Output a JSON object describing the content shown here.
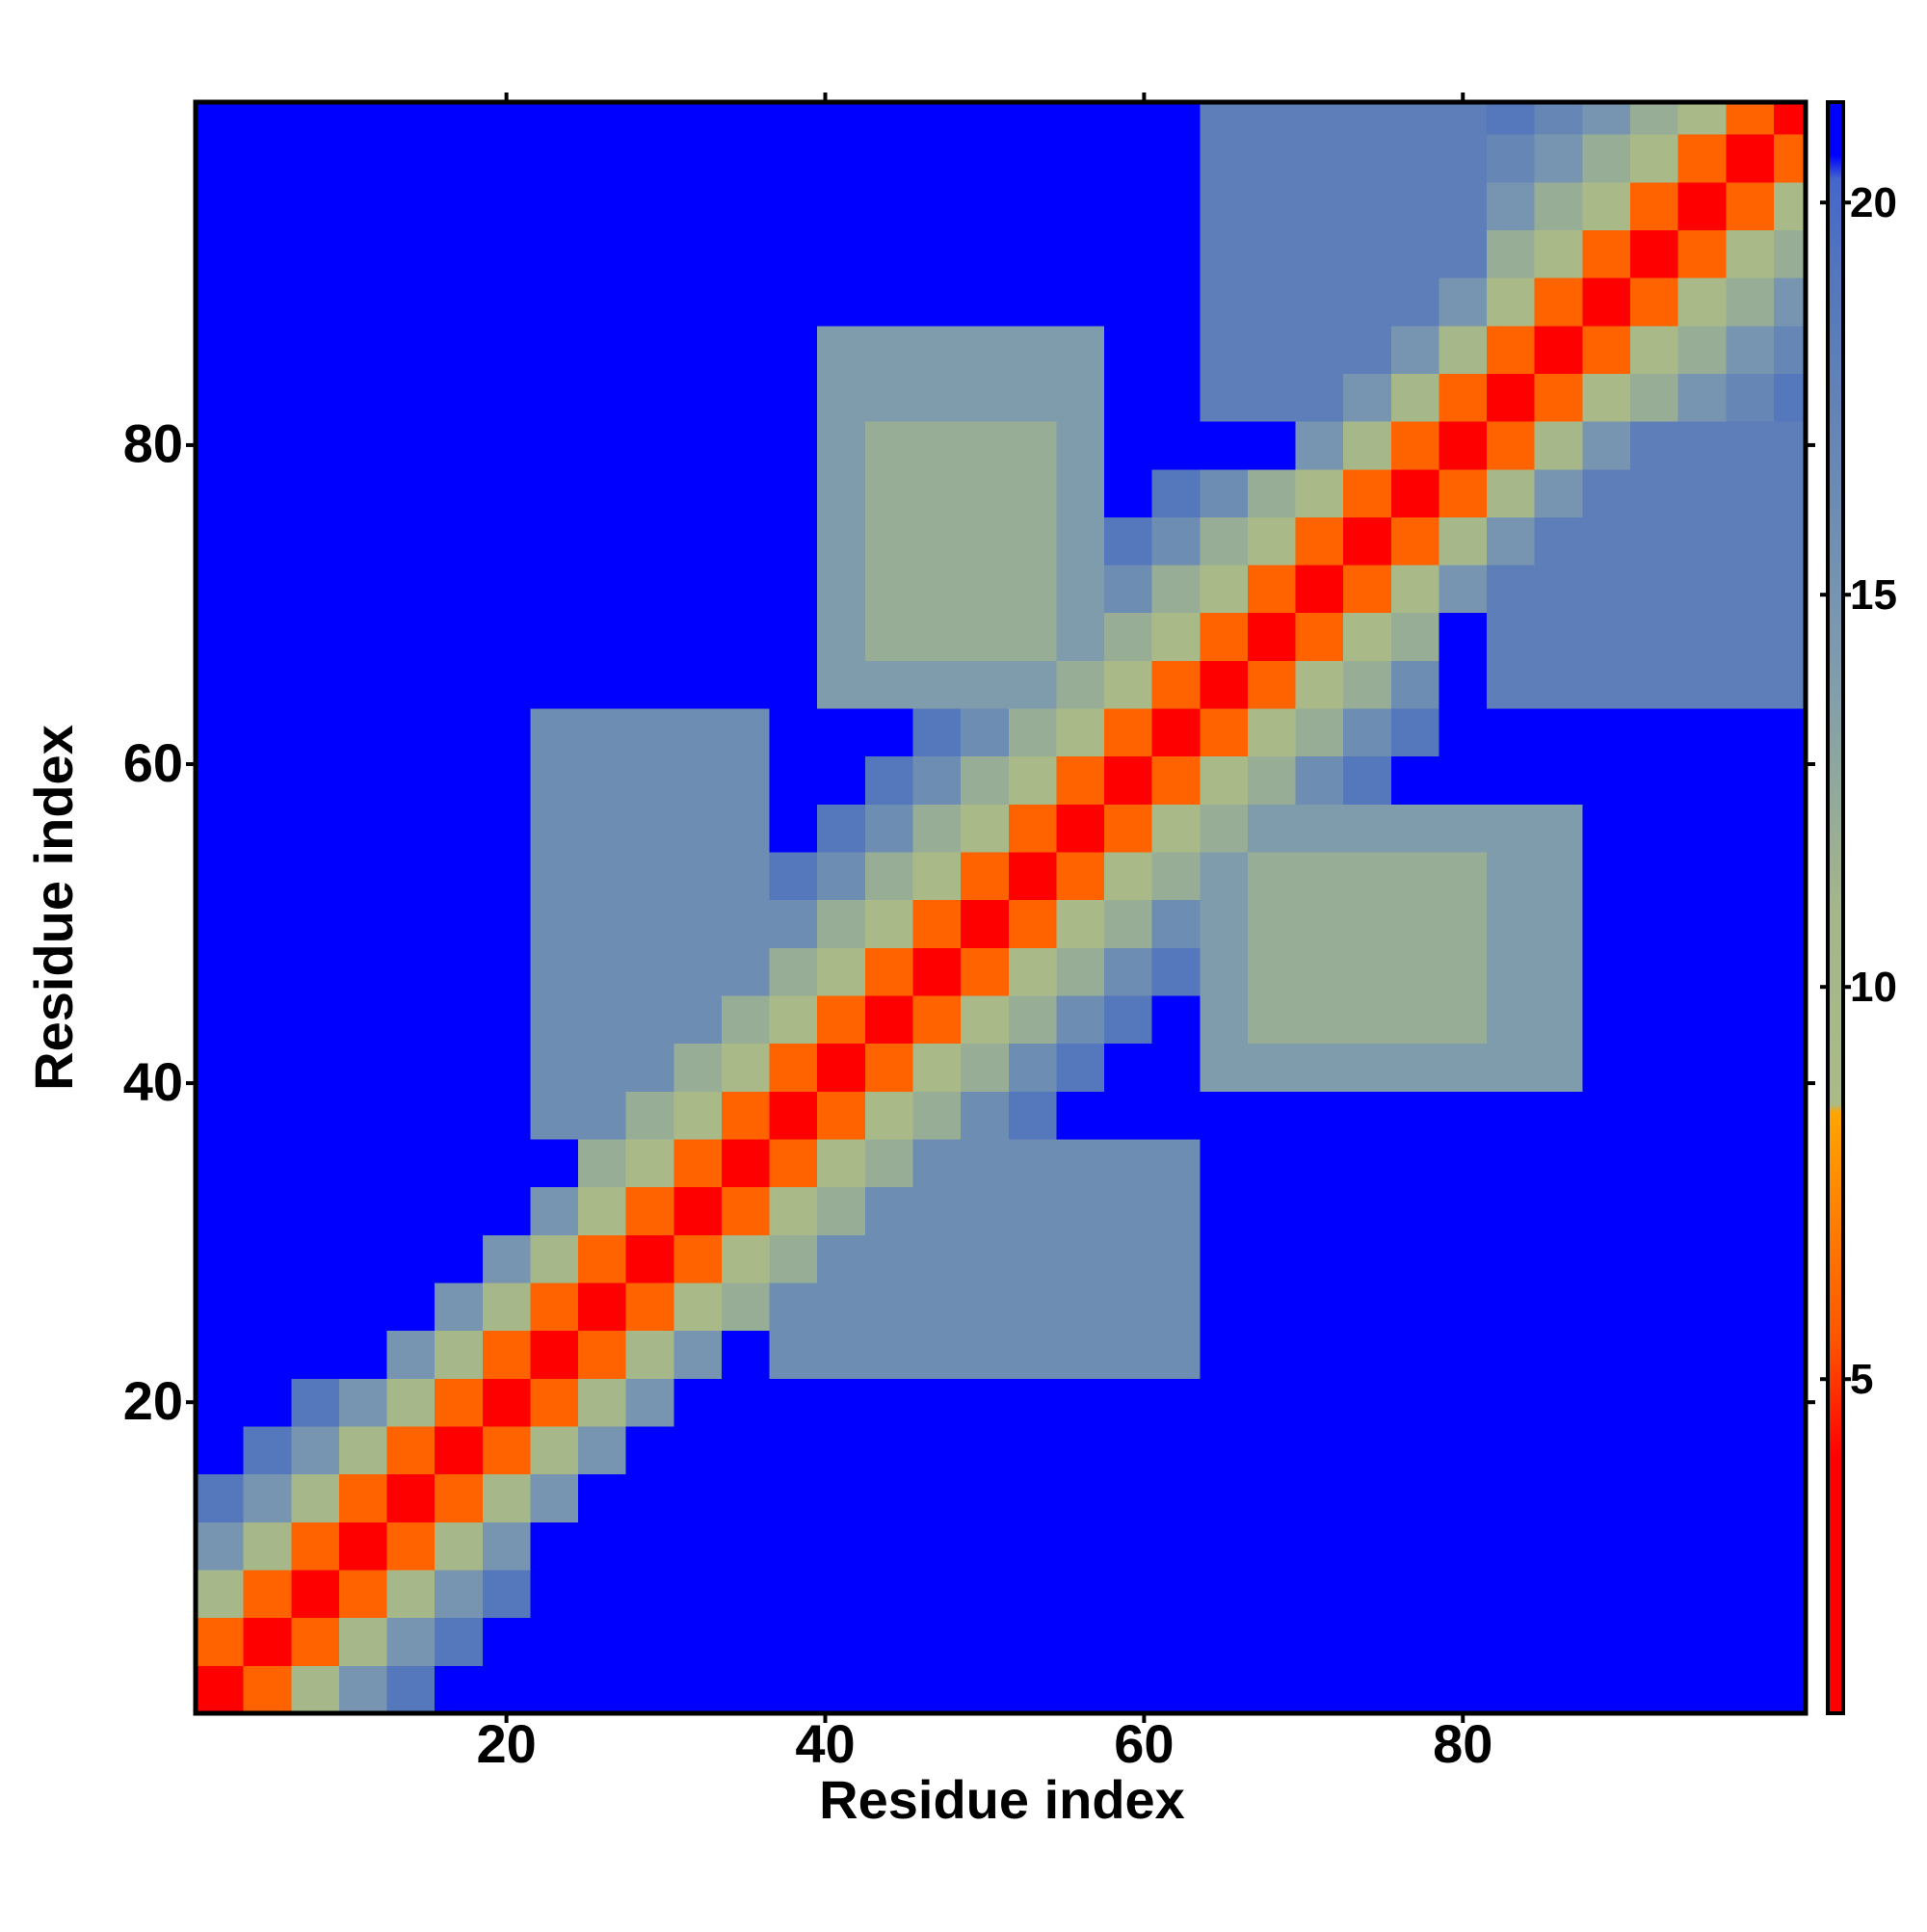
{
  "chart_data": {
    "type": "heatmap",
    "x_label": "Residue index",
    "y_label": "Residue index",
    "xlim": [
      0.5,
      101.5
    ],
    "ylim": [
      0.5,
      101.5
    ],
    "xticks": [
      20,
      40,
      60,
      80
    ],
    "yticks": [
      20,
      40,
      60,
      80
    ],
    "x_bins": [
      0.5,
      3.5,
      6.5,
      9.5,
      12.5,
      15.5,
      18.5,
      21.5,
      24.5,
      27.5,
      30.5,
      33.5,
      36.5,
      39.5,
      42.5,
      45.5,
      48.5,
      51.5,
      54.5,
      57.5,
      60.5,
      63.5,
      66.5,
      69.5,
      72.5,
      75.5,
      78.5,
      81.5,
      84.5,
      87.5,
      90.5,
      93.5,
      96.5,
      99.5,
      101.5
    ],
    "y_bins": [
      0.5,
      3.5,
      6.5,
      9.5,
      12.5,
      15.5,
      18.5,
      21.5,
      24.5,
      27.5,
      30.5,
      33.5,
      36.5,
      39.5,
      42.5,
      45.5,
      48.5,
      51.5,
      54.5,
      57.5,
      60.5,
      63.5,
      66.5,
      69.5,
      72.5,
      75.5,
      78.5,
      81.5,
      84.5,
      87.5,
      90.5,
      93.5,
      96.5,
      99.5,
      101.5
    ],
    "z": [
      [
        2,
        6,
        10,
        15,
        19,
        21,
        21,
        21,
        21,
        21,
        21,
        21,
        21,
        21,
        21,
        21,
        21,
        21,
        21,
        21,
        21,
        21,
        21,
        21,
        21,
        21,
        21,
        21,
        21,
        21,
        21,
        21,
        21,
        21
      ],
      [
        6,
        2,
        6,
        10,
        15,
        19,
        21,
        21,
        21,
        21,
        21,
        21,
        21,
        21,
        21,
        21,
        21,
        21,
        21,
        21,
        21,
        21,
        21,
        21,
        21,
        21,
        21,
        21,
        21,
        21,
        21,
        21,
        21,
        21
      ],
      [
        10,
        6,
        2,
        6,
        10,
        15,
        19,
        21,
        21,
        21,
        21,
        21,
        21,
        21,
        21,
        21,
        21,
        21,
        21,
        21,
        21,
        21,
        21,
        21,
        21,
        21,
        21,
        21,
        21,
        21,
        21,
        21,
        21,
        21
      ],
      [
        15,
        10,
        6,
        2,
        6,
        10,
        15,
        21,
        21,
        21,
        21,
        21,
        21,
        21,
        21,
        21,
        21,
        21,
        21,
        21,
        21,
        21,
        21,
        21,
        21,
        21,
        21,
        21,
        21,
        21,
        21,
        21,
        21,
        21
      ],
      [
        19,
        15,
        10,
        6,
        2,
        6,
        10,
        15,
        21,
        21,
        21,
        21,
        21,
        21,
        21,
        21,
        21,
        21,
        21,
        21,
        21,
        21,
        21,
        21,
        21,
        21,
        21,
        21,
        21,
        21,
        21,
        21,
        21,
        21
      ],
      [
        21,
        19,
        15,
        10,
        6,
        2,
        6,
        10,
        15,
        21,
        21,
        21,
        21,
        21,
        21,
        21,
        21,
        21,
        21,
        21,
        21,
        21,
        21,
        21,
        21,
        21,
        21,
        21,
        21,
        21,
        21,
        21,
        21,
        21
      ],
      [
        21,
        21,
        19,
        15,
        10,
        6,
        2,
        6,
        10,
        15,
        21,
        21,
        21,
        21,
        21,
        21,
        21,
        21,
        21,
        21,
        21,
        21,
        21,
        21,
        21,
        21,
        21,
        21,
        21,
        21,
        21,
        21,
        21,
        21
      ],
      [
        21,
        21,
        21,
        21,
        15,
        10,
        6,
        2,
        6,
        10,
        15,
        21,
        16,
        16,
        16,
        16,
        16,
        16,
        16,
        16,
        16,
        21,
        21,
        21,
        21,
        21,
        21,
        21,
        21,
        21,
        21,
        21,
        21,
        21
      ],
      [
        21,
        21,
        21,
        21,
        21,
        15,
        10,
        6,
        2,
        6,
        9,
        12,
        16,
        16,
        16,
        16,
        16,
        16,
        16,
        16,
        16,
        21,
        21,
        21,
        21,
        21,
        21,
        21,
        21,
        21,
        21,
        21,
        21,
        21
      ],
      [
        21,
        21,
        21,
        21,
        21,
        21,
        15,
        10,
        6,
        2,
        6,
        9,
        12,
        16,
        16,
        16,
        16,
        16,
        16,
        16,
        16,
        21,
        21,
        21,
        21,
        21,
        21,
        21,
        21,
        21,
        21,
        21,
        21,
        21
      ],
      [
        21,
        21,
        21,
        21,
        21,
        21,
        21,
        15,
        9,
        6,
        2,
        6,
        9,
        12,
        16,
        16,
        16,
        16,
        16,
        16,
        16,
        21,
        21,
        21,
        21,
        21,
        21,
        21,
        21,
        21,
        21,
        21,
        21,
        21
      ],
      [
        21,
        21,
        21,
        21,
        21,
        21,
        21,
        21,
        12,
        9,
        6,
        2,
        6,
        9,
        12,
        16,
        16,
        16,
        16,
        16,
        16,
        21,
        21,
        21,
        21,
        21,
        21,
        21,
        21,
        21,
        21,
        21,
        21,
        21
      ],
      [
        21,
        21,
        21,
        21,
        21,
        21,
        21,
        16,
        16,
        12,
        9,
        6,
        2,
        6,
        9,
        12,
        16,
        19,
        21,
        21,
        21,
        21,
        21,
        21,
        21,
        21,
        21,
        21,
        21,
        21,
        21,
        21,
        21,
        21
      ],
      [
        21,
        21,
        21,
        21,
        21,
        21,
        21,
        16,
        16,
        16,
        12,
        9,
        6,
        2,
        6,
        9,
        12,
        16,
        19,
        21,
        21,
        14,
        14,
        14,
        14,
        14,
        14,
        14,
        14,
        21,
        21,
        21,
        21,
        21
      ],
      [
        21,
        21,
        21,
        21,
        21,
        21,
        21,
        16,
        16,
        16,
        16,
        12,
        9,
        6,
        2,
        6,
        9,
        12,
        16,
        19,
        21,
        14,
        12,
        12,
        12,
        12,
        12,
        14,
        14,
        21,
        21,
        21,
        21,
        21
      ],
      [
        21,
        21,
        21,
        21,
        21,
        21,
        21,
        16,
        16,
        16,
        16,
        16,
        12,
        9,
        6,
        2,
        6,
        9,
        12,
        16,
        19,
        14,
        12,
        12,
        12,
        12,
        12,
        14,
        14,
        21,
        21,
        21,
        21,
        21
      ],
      [
        21,
        21,
        21,
        21,
        21,
        21,
        21,
        16,
        16,
        16,
        16,
        16,
        16,
        12,
        9,
        6,
        2,
        6,
        9,
        12,
        16,
        14,
        12,
        12,
        12,
        12,
        12,
        14,
        14,
        21,
        21,
        21,
        21,
        21
      ],
      [
        21,
        21,
        21,
        21,
        21,
        21,
        21,
        16,
        16,
        16,
        16,
        16,
        19,
        16,
        12,
        9,
        6,
        2,
        6,
        9,
        12,
        14,
        12,
        12,
        12,
        12,
        12,
        14,
        14,
        21,
        21,
        21,
        21,
        21
      ],
      [
        21,
        21,
        21,
        21,
        21,
        21,
        21,
        16,
        16,
        16,
        16,
        16,
        21,
        19,
        16,
        12,
        9,
        6,
        2,
        6,
        9,
        12,
        14,
        14,
        14,
        14,
        14,
        14,
        14,
        21,
        21,
        21,
        21,
        21
      ],
      [
        21,
        21,
        21,
        21,
        21,
        21,
        21,
        16,
        16,
        16,
        16,
        16,
        21,
        21,
        19,
        16,
        12,
        9,
        6,
        2,
        6,
        9,
        12,
        16,
        19,
        21,
        21,
        21,
        21,
        21,
        21,
        21,
        21,
        21
      ],
      [
        21,
        21,
        21,
        21,
        21,
        21,
        21,
        16,
        16,
        16,
        16,
        16,
        21,
        21,
        21,
        19,
        16,
        12,
        9,
        6,
        2,
        6,
        9,
        12,
        16,
        19,
        21,
        21,
        21,
        21,
        21,
        21,
        21,
        21
      ],
      [
        21,
        21,
        21,
        21,
        21,
        21,
        21,
        21,
        21,
        21,
        21,
        21,
        21,
        14,
        14,
        14,
        14,
        14,
        12,
        9,
        6,
        2,
        6,
        9,
        12,
        16,
        21,
        18,
        18,
        18,
        18,
        18,
        18,
        18
      ],
      [
        21,
        21,
        21,
        21,
        21,
        21,
        21,
        21,
        21,
        21,
        21,
        21,
        21,
        14,
        12,
        12,
        12,
        12,
        14,
        12,
        9,
        6,
        2,
        6,
        9,
        12,
        21,
        18,
        18,
        18,
        18,
        18,
        18,
        18
      ],
      [
        21,
        21,
        21,
        21,
        21,
        21,
        21,
        21,
        21,
        21,
        21,
        21,
        21,
        14,
        12,
        12,
        12,
        12,
        14,
        16,
        12,
        9,
        6,
        2,
        6,
        9,
        15,
        18,
        18,
        18,
        18,
        18,
        18,
        18
      ],
      [
        21,
        21,
        21,
        21,
        21,
        21,
        21,
        21,
        21,
        21,
        21,
        21,
        21,
        14,
        12,
        12,
        12,
        12,
        14,
        19,
        16,
        12,
        9,
        6,
        2,
        6,
        10,
        15,
        18,
        18,
        18,
        18,
        18,
        18
      ],
      [
        21,
        21,
        21,
        21,
        21,
        21,
        21,
        21,
        21,
        21,
        21,
        21,
        21,
        14,
        12,
        12,
        12,
        12,
        14,
        21,
        19,
        16,
        12,
        9,
        6,
        2,
        6,
        10,
        15,
        18,
        18,
        18,
        18,
        18
      ],
      [
        21,
        21,
        21,
        21,
        21,
        21,
        21,
        21,
        21,
        21,
        21,
        21,
        21,
        14,
        12,
        12,
        12,
        12,
        14,
        21,
        21,
        21,
        21,
        15,
        10,
        6,
        2,
        6,
        10,
        15,
        18,
        18,
        18,
        18
      ],
      [
        21,
        21,
        21,
        21,
        21,
        21,
        21,
        21,
        21,
        21,
        21,
        21,
        21,
        14,
        14,
        14,
        14,
        14,
        14,
        21,
        21,
        18,
        18,
        18,
        15,
        10,
        6,
        2,
        6,
        9,
        12,
        15,
        17,
        19
      ],
      [
        21,
        21,
        21,
        21,
        21,
        21,
        21,
        21,
        21,
        21,
        21,
        21,
        21,
        14,
        14,
        14,
        14,
        14,
        14,
        21,
        21,
        18,
        18,
        18,
        18,
        15,
        10,
        6,
        2,
        6,
        9,
        12,
        15,
        17
      ],
      [
        21,
        21,
        21,
        21,
        21,
        21,
        21,
        21,
        21,
        21,
        21,
        21,
        21,
        21,
        21,
        21,
        21,
        21,
        21,
        21,
        21,
        18,
        18,
        18,
        18,
        18,
        15,
        9,
        6,
        2,
        6,
        9,
        12,
        15
      ],
      [
        21,
        21,
        21,
        21,
        21,
        21,
        21,
        21,
        21,
        21,
        21,
        21,
        21,
        21,
        21,
        21,
        21,
        21,
        21,
        21,
        21,
        18,
        18,
        18,
        18,
        18,
        18,
        12,
        9,
        6,
        2,
        6,
        9,
        12
      ],
      [
        21,
        21,
        21,
        21,
        21,
        21,
        21,
        21,
        21,
        21,
        21,
        21,
        21,
        21,
        21,
        21,
        21,
        21,
        21,
        21,
        21,
        18,
        18,
        18,
        18,
        18,
        18,
        15,
        12,
        9,
        6,
        2,
        6,
        9
      ],
      [
        21,
        21,
        21,
        21,
        21,
        21,
        21,
        21,
        21,
        21,
        21,
        21,
        21,
        21,
        21,
        21,
        21,
        21,
        21,
        21,
        21,
        18,
        18,
        18,
        18,
        18,
        18,
        17,
        15,
        12,
        9,
        6,
        2,
        6
      ],
      [
        21,
        21,
        21,
        21,
        21,
        21,
        21,
        21,
        21,
        21,
        21,
        21,
        21,
        21,
        21,
        21,
        21,
        21,
        21,
        21,
        21,
        18,
        18,
        18,
        18,
        18,
        18,
        19,
        17,
        15,
        12,
        9,
        6,
        2
      ]
    ],
    "colorbar": {
      "zlim": [
        0.74,
        21.28
      ],
      "ticks": [
        5,
        10,
        15,
        20
      ],
      "stops": [
        [
          0.74,
          "#ff0000"
        ],
        [
          4,
          "#ff0000"
        ],
        [
          5.5,
          "#ff5500"
        ],
        [
          8.4,
          "#ffa500"
        ],
        [
          8.5,
          "#aabb88"
        ],
        [
          11,
          "#a4b68a"
        ],
        [
          14,
          "#7f9cad"
        ],
        [
          19,
          "#5577bb"
        ],
        [
          20.3,
          "#4466cc"
        ],
        [
          20.6,
          "#0000ff"
        ],
        [
          21.28,
          "#0000ff"
        ]
      ]
    }
  }
}
